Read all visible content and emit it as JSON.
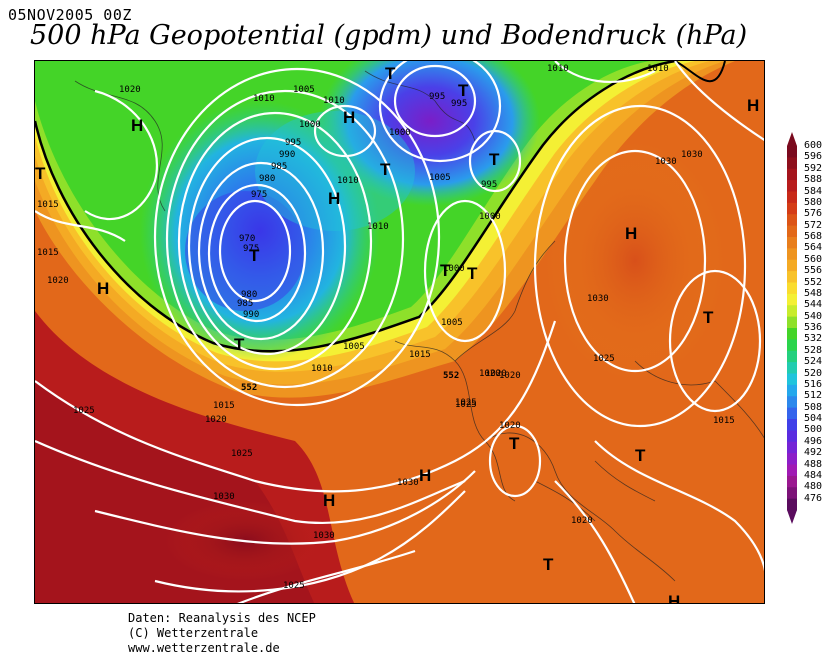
{
  "header": {
    "date_label": "05NOV2005  00Z",
    "title": "500 hPa Geopotential (gpdm) und Bodendruck (hPa)"
  },
  "legend": {
    "unit": "gpdm",
    "levels": [
      "600",
      "596",
      "592",
      "588",
      "584",
      "580",
      "576",
      "572",
      "568",
      "564",
      "560",
      "556",
      "552",
      "548",
      "544",
      "540",
      "536",
      "532",
      "528",
      "524",
      "520",
      "516",
      "512",
      "508",
      "504",
      "500",
      "496",
      "492",
      "488",
      "484",
      "480",
      "476"
    ],
    "colors": [
      "#7a0a1e",
      "#8e0f1c",
      "#a4141c",
      "#b81c1c",
      "#c82a18",
      "#d43c16",
      "#dc5416",
      "#e26818",
      "#e87e1c",
      "#ee9420",
      "#f4aa24",
      "#f8c22a",
      "#fadc2e",
      "#f4f034",
      "#c8ec2c",
      "#8ee02a",
      "#44d428",
      "#2ad44c",
      "#24d07e",
      "#22ccb0",
      "#20c4dc",
      "#24a8ec",
      "#2c88ec",
      "#3464ec",
      "#4040e8",
      "#5a2ce0",
      "#7424d6",
      "#8c1ec8",
      "#a01ab4",
      "#9a1890",
      "#7c1278",
      "#5a0c5e"
    ]
  },
  "map": {
    "highs": [
      "H",
      "H",
      "H",
      "H",
      "H",
      "H",
      "H",
      "H",
      "H"
    ],
    "lows": [
      "T",
      "T",
      "T",
      "T",
      "T",
      "T",
      "T",
      "T",
      "T",
      "T",
      "T",
      "T",
      "T"
    ],
    "isobar_labels": [
      "1020",
      "1010",
      "1010",
      "1005",
      "1010",
      "995",
      "995",
      "1000",
      "1000",
      "995",
      "990",
      "985",
      "980",
      "975",
      "970",
      "975",
      "980",
      "985",
      "990",
      "1010",
      "1010",
      "1005",
      "995",
      "1000",
      "1010",
      "1015",
      "1020",
      "1005",
      "1015",
      "1020",
      "1000",
      "1005",
      "1010",
      "1015",
      "1020",
      "1025",
      "1025",
      "1030",
      "1030",
      "1025",
      "1020",
      "1015",
      "1025",
      "1030",
      "1030",
      "1025",
      "1020",
      "1020",
      "1030",
      "1030",
      "1020",
      "1015",
      "1025"
    ],
    "isohypse_labels": [
      "552",
      "552"
    ]
  },
  "credits": {
    "line1": "Daten: Reanalysis des NCEP",
    "line2": "(C) Wetterzentrale",
    "line3": "www.wetterzentrale.de"
  }
}
